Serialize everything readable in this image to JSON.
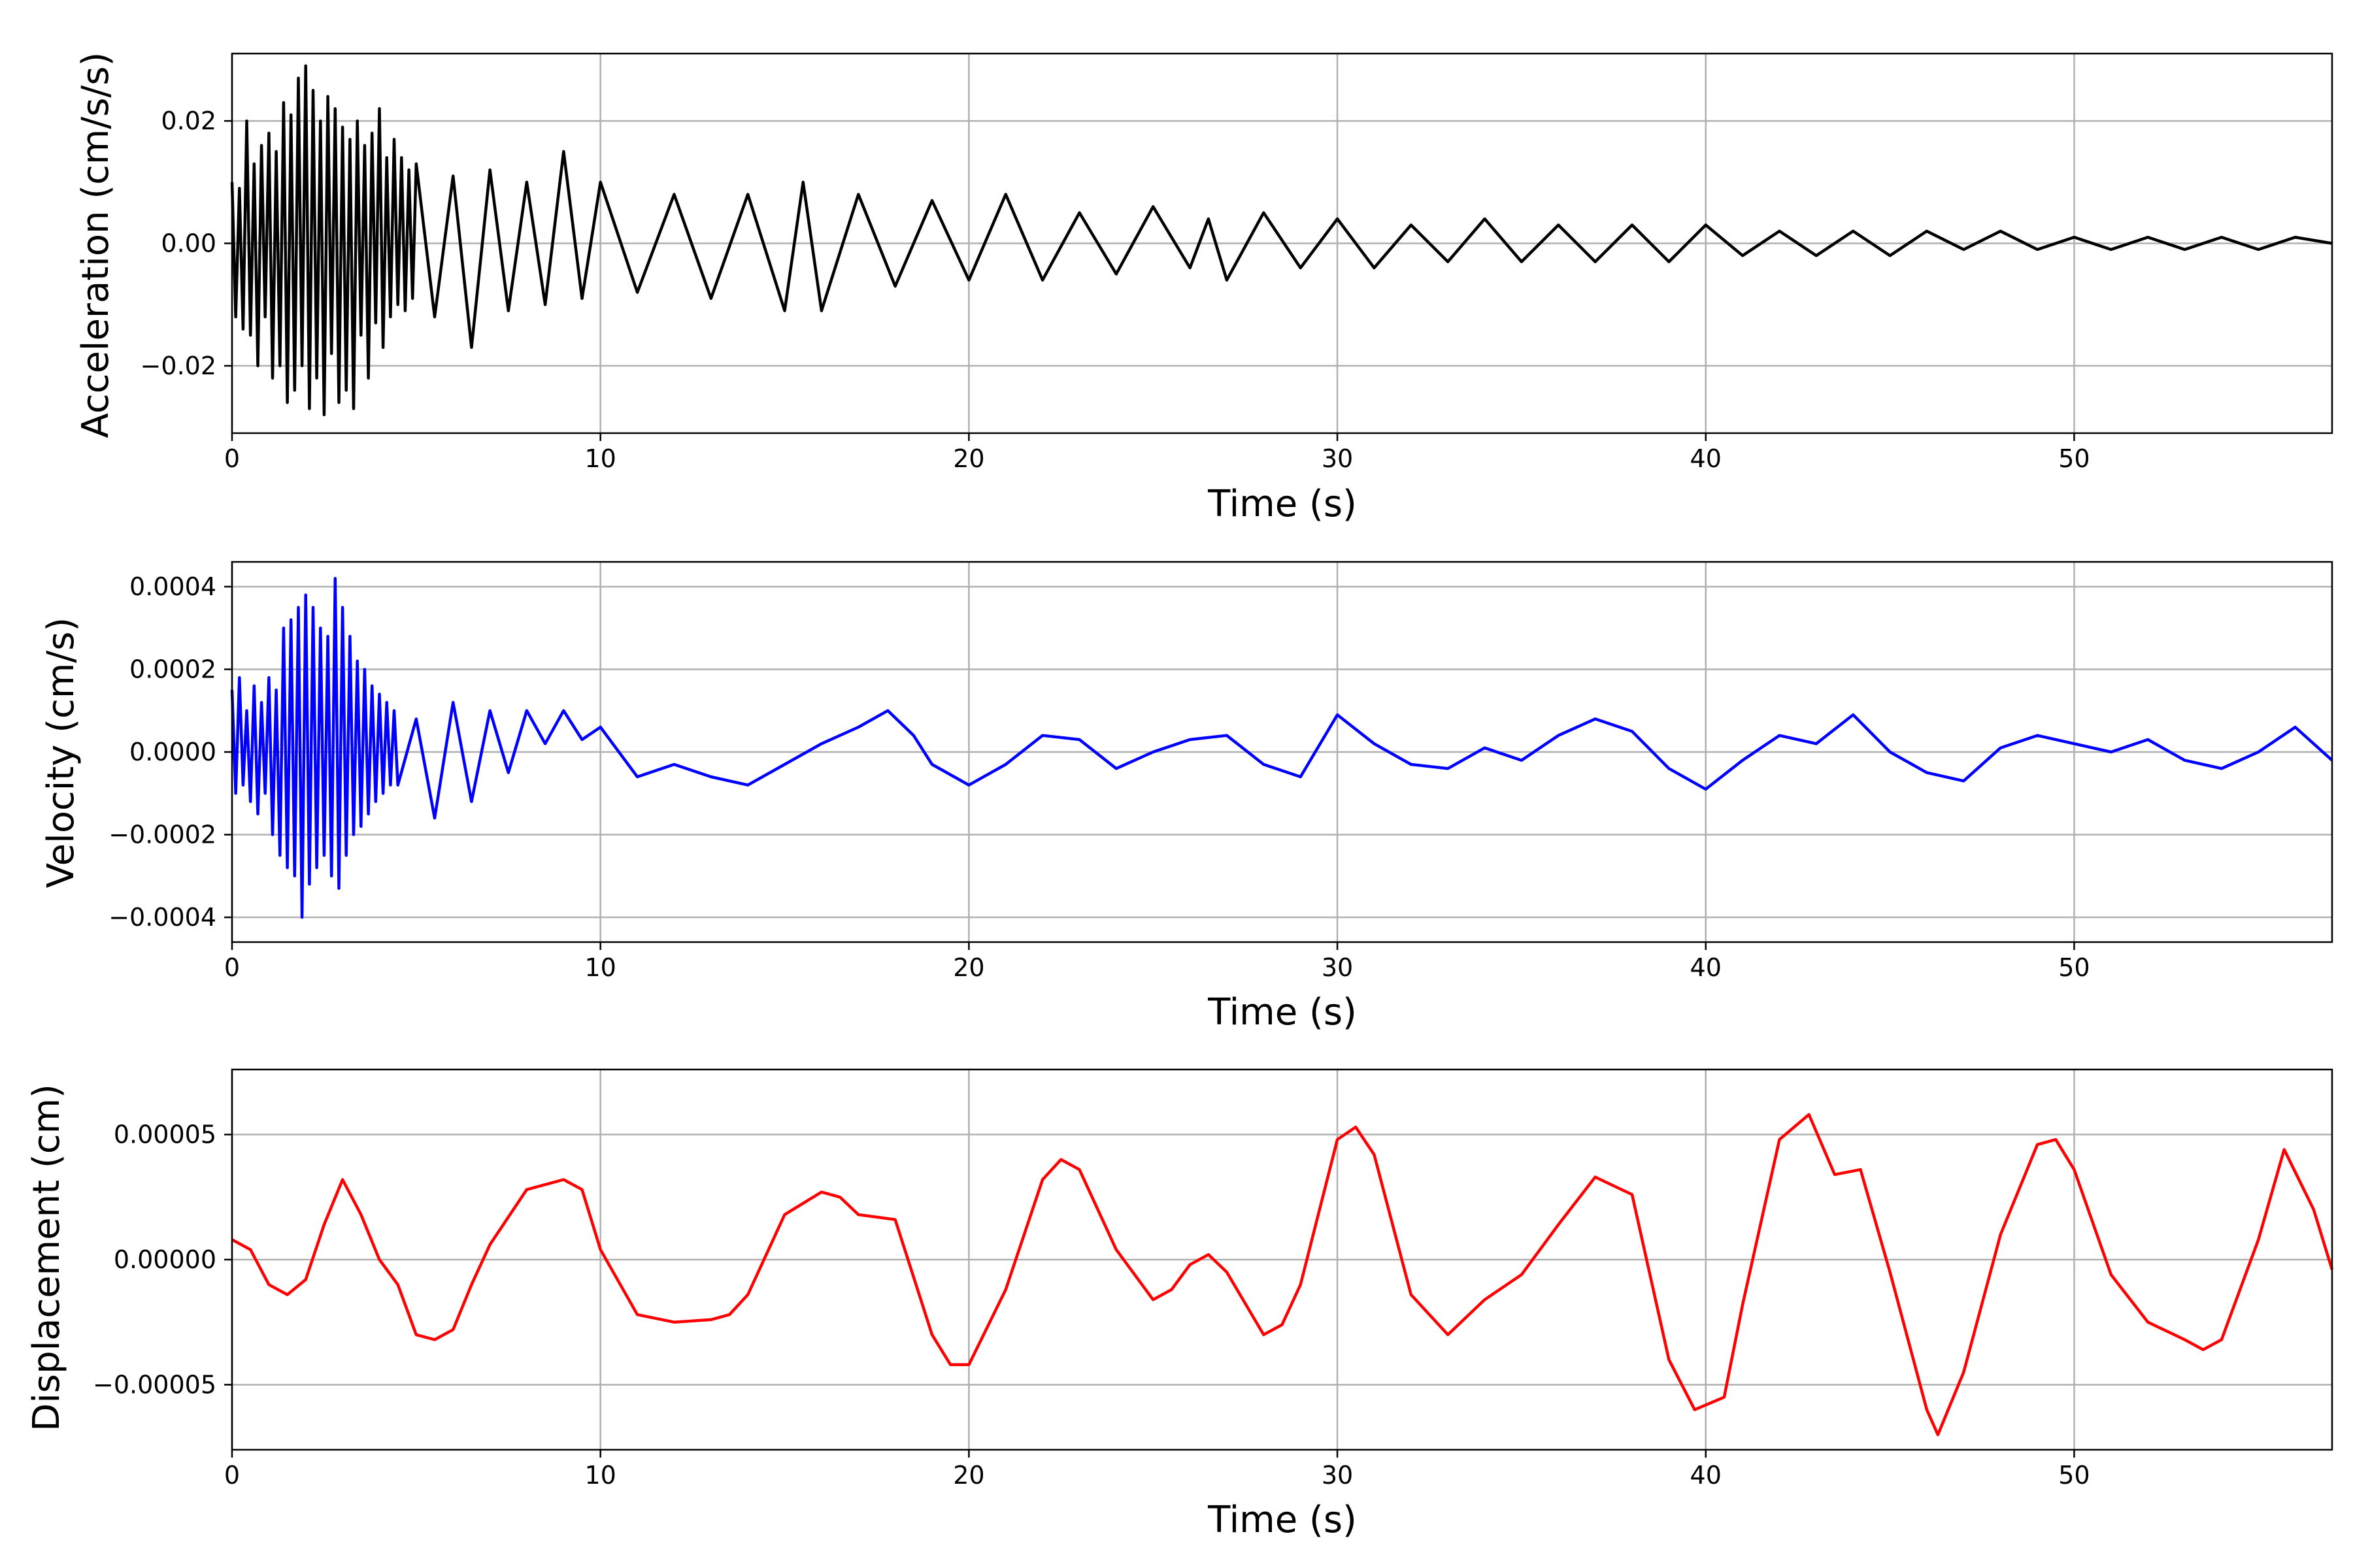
{
  "chart_data": [
    {
      "type": "line",
      "xlabel": "Time (s)",
      "ylabel": "Acceleration (cm/s/s)",
      "xlim": [
        0,
        57
      ],
      "ylim": [
        -0.031,
        0.031
      ],
      "x_ticks": [
        0,
        10,
        20,
        30,
        40,
        50
      ],
      "y_ticks": [
        -0.02,
        0.0,
        0.02
      ],
      "y_tick_labels": [
        "−0.02",
        "0.00",
        "0.02"
      ],
      "grid": true,
      "color": "#000000",
      "series": [
        {
          "x": [
            0.0,
            0.1,
            0.2,
            0.3,
            0.4,
            0.5,
            0.6,
            0.7,
            0.8,
            0.9,
            1.0,
            1.1,
            1.2,
            1.3,
            1.4,
            1.5,
            1.6,
            1.7,
            1.8,
            1.9,
            2.0,
            2.1,
            2.2,
            2.3,
            2.4,
            2.5,
            2.6,
            2.7,
            2.8,
            2.9,
            3.0,
            3.1,
            3.2,
            3.3,
            3.4,
            3.5,
            3.6,
            3.7,
            3.8,
            3.9,
            4.0,
            4.1,
            4.2,
            4.3,
            4.4,
            4.5,
            4.6,
            4.7,
            4.8,
            4.9,
            5.0,
            5.5,
            6.0,
            6.5,
            7.0,
            7.5,
            8.0,
            8.5,
            9.0,
            9.5,
            10.0,
            11,
            12,
            13,
            14,
            15,
            15.5,
            16,
            17,
            18,
            19,
            20,
            21,
            22,
            23,
            24,
            25,
            26,
            26.5,
            27,
            28,
            29,
            30,
            31,
            32,
            33,
            34,
            35,
            36,
            37,
            38,
            39,
            40,
            41,
            42,
            43,
            44,
            45,
            46,
            47,
            48,
            49,
            50,
            51,
            52,
            53,
            54,
            55,
            56,
            57
          ],
          "y": [
            0.01,
            -0.012,
            0.009,
            -0.014,
            0.02,
            -0.015,
            0.013,
            -0.02,
            0.016,
            -0.012,
            0.018,
            -0.022,
            0.015,
            -0.02,
            0.023,
            -0.026,
            0.021,
            -0.024,
            0.027,
            -0.02,
            0.029,
            -0.027,
            0.025,
            -0.022,
            0.02,
            -0.028,
            0.024,
            -0.018,
            0.022,
            -0.026,
            0.019,
            -0.024,
            0.017,
            -0.027,
            0.02,
            -0.015,
            0.016,
            -0.022,
            0.018,
            -0.013,
            0.022,
            -0.017,
            0.014,
            -0.012,
            0.017,
            -0.01,
            0.014,
            -0.011,
            0.012,
            -0.009,
            0.013,
            -0.012,
            0.011,
            -0.017,
            0.012,
            -0.011,
            0.01,
            -0.01,
            0.015,
            -0.009,
            0.01,
            -0.008,
            0.008,
            -0.009,
            0.008,
            -0.011,
            0.01,
            -0.011,
            0.008,
            -0.007,
            0.007,
            -0.006,
            0.008,
            -0.006,
            0.005,
            -0.005,
            0.006,
            -0.004,
            0.004,
            -0.006,
            0.005,
            -0.004,
            0.004,
            -0.004,
            0.003,
            -0.003,
            0.004,
            -0.003,
            0.003,
            -0.003,
            0.003,
            -0.003,
            0.003,
            -0.002,
            0.002,
            -0.002,
            0.002,
            -0.002,
            0.002,
            -0.001,
            0.002,
            -0.001,
            0.001,
            -0.001,
            0.001,
            -0.001,
            0.001,
            -0.001,
            0.001,
            0.0
          ]
        }
      ]
    },
    {
      "type": "line",
      "xlabel": "Time (s)",
      "ylabel": "Velocity (cm/s)",
      "xlim": [
        0,
        57
      ],
      "ylim": [
        -0.00046,
        0.00046
      ],
      "x_ticks": [
        0,
        10,
        20,
        30,
        40,
        50
      ],
      "y_ticks": [
        -0.0004,
        -0.0002,
        0.0,
        0.0002,
        0.0004
      ],
      "y_tick_labels": [
        "−0.0004",
        "−0.0002",
        "0.0000",
        "0.0002",
        "0.0004"
      ],
      "grid": true,
      "color": "#0000ff",
      "series": [
        {
          "x": [
            0.0,
            0.1,
            0.2,
            0.3,
            0.4,
            0.5,
            0.6,
            0.7,
            0.8,
            0.9,
            1.0,
            1.1,
            1.2,
            1.3,
            1.4,
            1.5,
            1.6,
            1.7,
            1.8,
            1.9,
            2.0,
            2.1,
            2.2,
            2.3,
            2.4,
            2.5,
            2.6,
            2.7,
            2.8,
            2.9,
            3.0,
            3.1,
            3.2,
            3.3,
            3.4,
            3.5,
            3.6,
            3.7,
            3.8,
            3.9,
            4.0,
            4.1,
            4.2,
            4.3,
            4.4,
            4.5,
            5.0,
            5.5,
            6.0,
            6.5,
            7.0,
            7.5,
            8.0,
            8.5,
            9.0,
            9.5,
            10.0,
            11,
            12,
            13,
            14,
            15,
            16,
            17,
            17.8,
            18.5,
            19,
            20,
            21,
            22,
            23,
            24,
            25,
            26,
            27,
            28,
            29,
            30,
            31,
            32,
            33,
            34,
            35,
            36,
            37,
            38,
            39,
            40,
            41,
            42,
            43,
            44,
            45,
            46,
            47,
            48,
            49,
            50,
            51,
            52,
            53,
            54,
            55,
            56,
            57
          ],
          "y": [
            0.00015,
            -0.0001,
            0.00018,
            -8e-05,
            0.0001,
            -0.00012,
            0.00016,
            -0.00015,
            0.00012,
            -0.0001,
            0.00018,
            -0.0002,
            0.00015,
            -0.00025,
            0.0003,
            -0.00028,
            0.00032,
            -0.0003,
            0.00035,
            -0.0004,
            0.00038,
            -0.00032,
            0.00035,
            -0.00028,
            0.0003,
            -0.00025,
            0.00028,
            -0.0003,
            0.00042,
            -0.00033,
            0.00035,
            -0.00025,
            0.00028,
            -0.0002,
            0.00022,
            -0.00018,
            0.0002,
            -0.00015,
            0.00016,
            -0.00012,
            0.00014,
            -0.0001,
            0.00012,
            -8e-05,
            0.0001,
            -8e-05,
            8e-05,
            -0.00016,
            0.00012,
            -0.00012,
            0.0001,
            -5e-05,
            0.0001,
            2e-05,
            0.0001,
            3e-05,
            6e-05,
            -6e-05,
            -3e-05,
            -6e-05,
            -8e-05,
            -3e-05,
            2e-05,
            6e-05,
            0.0001,
            4e-05,
            -3e-05,
            -8e-05,
            -3e-05,
            4e-05,
            3e-05,
            -4e-05,
            0.0,
            3e-05,
            4e-05,
            -3e-05,
            -6e-05,
            9e-05,
            2e-05,
            -3e-05,
            -4e-05,
            1e-05,
            -2e-05,
            4e-05,
            8e-05,
            5e-05,
            -4e-05,
            -9e-05,
            -2e-05,
            4e-05,
            2e-05,
            9e-05,
            0.0,
            -5e-05,
            -7e-05,
            1e-05,
            4e-05,
            2e-05,
            0.0,
            3e-05,
            -2e-05,
            -4e-05,
            0.0,
            6e-05,
            -2e-05
          ]
        }
      ]
    },
    {
      "type": "line",
      "xlabel": "Time (s)",
      "ylabel": "Displacement (cm)",
      "xlim": [
        0,
        57
      ],
      "ylim": [
        -7.6e-05,
        7.6e-05
      ],
      "x_ticks": [
        0,
        10,
        20,
        30,
        40,
        50
      ],
      "y_ticks": [
        -5e-05,
        0.0,
        5e-05
      ],
      "y_tick_labels": [
        "−0.00005",
        "0.00000",
        "0.00005"
      ],
      "grid": true,
      "color": "#ff0000",
      "series": [
        {
          "x": [
            0.0,
            0.5,
            1.0,
            1.5,
            2.0,
            2.5,
            3.0,
            3.5,
            4.0,
            4.5,
            5.0,
            5.5,
            6.0,
            6.5,
            7.0,
            8.0,
            9.0,
            9.5,
            10.0,
            11.0,
            12.0,
            13.0,
            13.5,
            14.0,
            15.0,
            16.0,
            16.5,
            17.0,
            18.0,
            19.0,
            19.5,
            20.0,
            21.0,
            22.0,
            22.5,
            23.0,
            24.0,
            25.0,
            25.5,
            26.0,
            26.5,
            27.0,
            28.0,
            28.5,
            29.0,
            30.0,
            30.5,
            31.0,
            32.0,
            33.0,
            34.0,
            35.0,
            36.0,
            37.0,
            38.0,
            39.0,
            39.7,
            40.5,
            41.0,
            42.0,
            42.8,
            43.5,
            44.2,
            45.0,
            46.0,
            46.3,
            47.0,
            48.0,
            49.0,
            49.5,
            50.0,
            51.0,
            52.0,
            53.0,
            53.5,
            54.0,
            55.0,
            55.7,
            56.5,
            57.0
          ],
          "y": [
            8e-06,
            4e-06,
            -1e-05,
            -1.4e-05,
            -8e-06,
            1.4e-05,
            3.2e-05,
            1.8e-05,
            0.0,
            -1e-05,
            -3e-05,
            -3.2e-05,
            -2.8e-05,
            -1e-05,
            6e-06,
            2.8e-05,
            3.2e-05,
            2.8e-05,
            4e-06,
            -2.2e-05,
            -2.5e-05,
            -2.4e-05,
            -2.2e-05,
            -1.4e-05,
            1.8e-05,
            2.7e-05,
            2.5e-05,
            1.8e-05,
            1.6e-05,
            -3e-05,
            -4.2e-05,
            -4.2e-05,
            -1.2e-05,
            3.2e-05,
            4e-05,
            3.6e-05,
            4e-06,
            -1.6e-05,
            -1.2e-05,
            -2e-06,
            2e-06,
            -5e-06,
            -3e-05,
            -2.6e-05,
            -1e-05,
            4.8e-05,
            5.3e-05,
            4.2e-05,
            -1.4e-05,
            -3e-05,
            -1.6e-05,
            -6e-06,
            1.4e-05,
            3.3e-05,
            2.6e-05,
            -4e-05,
            -6e-05,
            -5.5e-05,
            -1.8e-05,
            4.8e-05,
            5.8e-05,
            3.4e-05,
            3.6e-05,
            -5e-06,
            -6e-05,
            -7e-05,
            -4.5e-05,
            1e-05,
            4.6e-05,
            4.8e-05,
            3.6e-05,
            -6e-06,
            -2.5e-05,
            -3.2e-05,
            -3.6e-05,
            -3.2e-05,
            8e-06,
            4.4e-05,
            2e-05,
            -4e-06
          ]
        }
      ]
    }
  ]
}
